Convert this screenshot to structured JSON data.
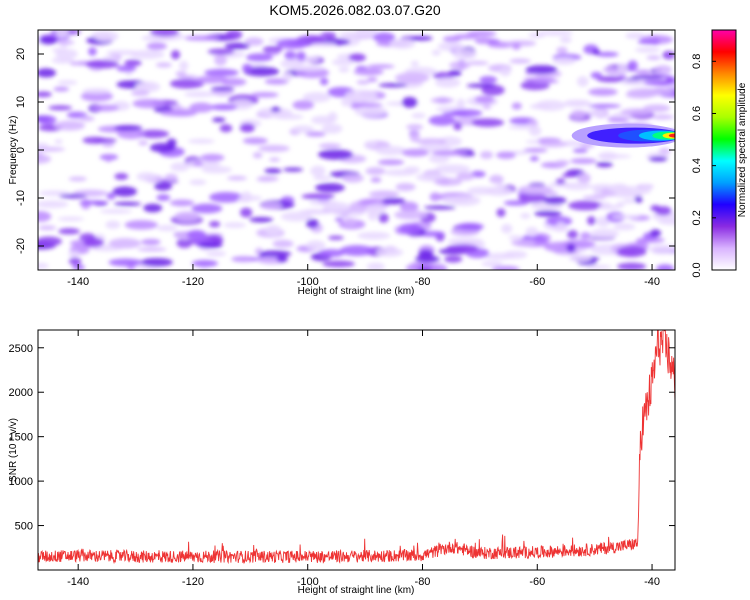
{
  "title": "KOM5.2026.082.03.07.G20",
  "colors": {
    "snr_line": "#ee3333",
    "colorbar_stops": [
      "#ffffff",
      "#d9b3ff",
      "#8a2be2",
      "#2000ff",
      "#00a0ff",
      "#00ffff",
      "#00ff00",
      "#aaff00",
      "#ffff00",
      "#ff8800",
      "#ff0000",
      "#ff00aa"
    ]
  },
  "chart_data": [
    {
      "type": "heatmap",
      "xlabel": "Height of straight line (km)",
      "ylabel": "Frequency (Hz)",
      "xlim": [
        -147,
        -36
      ],
      "ylim": [
        -25,
        25
      ],
      "x_ticks": [
        -140,
        -120,
        -100,
        -80,
        -60,
        -40
      ],
      "y_ticks": [
        -20,
        -10,
        0,
        10,
        20
      ],
      "x_tick_labels": [
        "-140",
        "-120",
        "-100",
        "-80",
        "-60",
        "-40"
      ],
      "y_tick_labels": [
        "-20",
        "-10",
        "0",
        "10",
        "20"
      ],
      "colorbar": {
        "label": "Normalized spectral amplitude",
        "range": [
          0,
          0.92
        ],
        "ticks": [
          0.0,
          0.2,
          0.4,
          0.6,
          0.8
        ],
        "tick_labels": [
          "0.0",
          "0.2",
          "0.4",
          "0.6",
          "0.8"
        ]
      },
      "features": [
        {
          "x_range": [
            -54,
            -36
          ],
          "frequency": 3,
          "peak_amplitude": 0.9,
          "peak_x": -37
        }
      ],
      "background_amplitude": [
        0,
        0.25
      ]
    },
    {
      "type": "line",
      "xlabel": "Height of straight line (km)",
      "ylabel": "SNR (10 * v/v)",
      "xlim": [
        -147,
        -36
      ],
      "ylim": [
        0,
        2700
      ],
      "x_ticks": [
        -140,
        -120,
        -100,
        -80,
        -60,
        -40
      ],
      "y_ticks": [
        500,
        1000,
        1500,
        2000,
        2500
      ],
      "x_tick_labels": [
        "-140",
        "-120",
        "-100",
        "-80",
        "-60",
        "-40"
      ],
      "y_tick_labels": [
        "500",
        "1000",
        "1500",
        "2000",
        "2500"
      ],
      "series": [
        {
          "x": [
            -147,
            -140,
            -130,
            -120,
            -110,
            -100,
            -90,
            -80,
            -75,
            -70,
            -60,
            -50,
            -45,
            -42.5,
            -42,
            -41,
            -40,
            -39,
            -38,
            -37,
            -36
          ],
          "values": [
            150,
            160,
            150,
            150,
            150,
            150,
            155,
            165,
            260,
            190,
            200,
            230,
            270,
            300,
            1550,
            1800,
            2100,
            2550,
            2550,
            2400,
            2100
          ]
        }
      ]
    }
  ]
}
